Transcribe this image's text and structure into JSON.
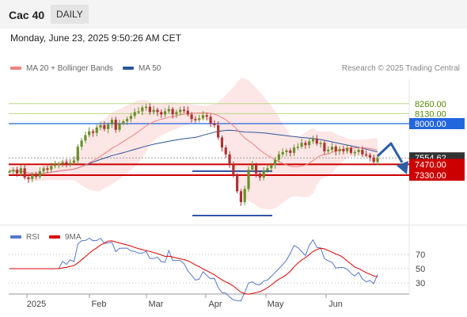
{
  "header": {
    "symbol": "Cac 40",
    "period": "DAILY",
    "timestamp": "Monday, June 23, 2025 9:50:26 AM CET"
  },
  "legend": {
    "ma20_label": "MA 20 + Bollinger Bands",
    "ma50_label": "MA 50",
    "credit": "Research © 2025 Trading Central",
    "rsi_label": "RSI",
    "rsi_ma_label": "9MA"
  },
  "colors": {
    "ma20": "#f08080",
    "ma50": "#2b5797",
    "band": "#fde6e6",
    "support": "#cc0000",
    "resistance": "#2266dd",
    "green": "#558800"
  },
  "chart_data": {
    "type": "candlestick",
    "x_labels": [
      "2025",
      "Feb",
      "Mar",
      "Apr",
      "May",
      "Jun"
    ],
    "price_levels": [
      {
        "value": 8260,
        "label": "8260.00",
        "kind": "green-line"
      },
      {
        "value": 8130,
        "label": "8130.00",
        "kind": "green-line"
      },
      {
        "value": 8000,
        "label": "8000.00",
        "kind": "resistance"
      },
      {
        "value": 7554.62,
        "label": "7554.62",
        "kind": "last"
      },
      {
        "value": 7470,
        "label": "7470.00",
        "kind": "support"
      },
      {
        "value": 7330,
        "label": "7330.00",
        "kind": "support"
      }
    ],
    "closes": [
      7380,
      7400,
      7350,
      7420,
      7300,
      7280,
      7330,
      7310,
      7380,
      7420,
      7400,
      7450,
      7470,
      7480,
      7500,
      7470,
      7490,
      7520,
      7700,
      7780,
      7850,
      7900,
      7880,
      7950,
      7980,
      7930,
      7990,
      8050,
      7920,
      8000,
      8030,
      8060,
      8100,
      8150,
      8160,
      8210,
      8220,
      8150,
      8180,
      8150,
      8120,
      8160,
      8190,
      8120,
      8150,
      8180,
      8170,
      8120,
      8060,
      8050,
      8070,
      8110,
      8090,
      8000,
      7980,
      7820,
      7690,
      7600,
      7460,
      7330,
      7120,
      6980,
      7150,
      7400,
      7460,
      7350,
      7300,
      7390,
      7420,
      7460,
      7530,
      7600,
      7630,
      7650,
      7620,
      7690,
      7700,
      7750,
      7720,
      7770,
      7800,
      7740,
      7750,
      7640,
      7660,
      7700,
      7640,
      7670,
      7640,
      7680,
      7620,
      7630,
      7660,
      7600,
      7590,
      7560,
      7500,
      7554.62
    ],
    "rsi": {
      "ticks": [
        70,
        50,
        30
      ]
    }
  }
}
